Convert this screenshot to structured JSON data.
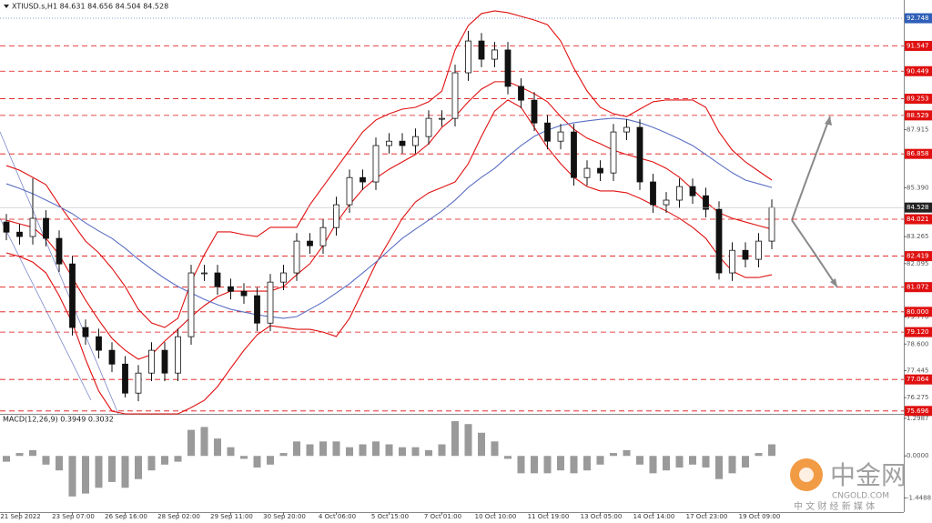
{
  "chart_data": [
    {
      "type": "candlestick",
      "title": "XTIUSD.s,H1  84.631 84.656 84.504 84.528",
      "categories": [
        null,
        "21 Sep 2022",
        null,
        null,
        null,
        "23 Sep 07:00",
        null,
        null,
        null,
        "26 Sep 16:00",
        null,
        null,
        null,
        "28 Sep 02:00",
        null,
        null,
        null,
        "29 Sep 11:00",
        null,
        null,
        null,
        "30 Sep 20:00",
        null,
        null,
        null,
        "4 Oct 06:00",
        null,
        null,
        null,
        "5 Oct 15:00",
        null,
        null,
        null,
        "7 Oct 01:00",
        null,
        null,
        null,
        "10 Oct 10:00",
        null,
        null,
        null,
        "11 Oct 19:00",
        null,
        null,
        null,
        "13 Oct 05:00",
        null,
        null,
        null,
        "14 Oct 14:00",
        null,
        null,
        null,
        "17 Oct 23:00",
        null,
        null,
        null,
        "19 Oct 09:00",
        null
      ],
      "open": [
        83.9,
        83.46,
        83.27,
        84.06,
        83.19,
        82.08,
        79.32,
        78.92,
        78.33,
        77.73,
        76.47,
        77.34,
        78.33,
        77.34,
        78.92,
        81.69,
        81.69,
        81.09,
        80.89,
        80.7,
        79.51,
        81.29,
        81.69,
        83.07,
        82.87,
        83.66,
        84.65,
        85.83,
        85.64,
        87.22,
        87.41,
        87.22,
        87.61,
        88.4,
        88.4,
        90.38,
        91.76,
        90.97,
        91.37,
        89.79,
        89.19,
        88.2,
        87.41,
        87.81,
        85.83,
        86.23,
        86.03,
        87.81,
        88.01,
        85.64,
        84.65,
        84.85,
        85.44,
        85.04,
        84.45,
        81.69,
        82.67,
        82.28,
        83.07
      ],
      "high": [
        84.25,
        83.81,
        85.8,
        84.41,
        83.54,
        82.43,
        79.67,
        79.27,
        78.68,
        78.08,
        77.69,
        78.68,
        78.68,
        79.27,
        82.04,
        82.04,
        82.04,
        81.44,
        81.24,
        81.05,
        81.64,
        82.04,
        83.42,
        83.42,
        84.01,
        85.0,
        86.18,
        86.18,
        87.57,
        87.76,
        87.76,
        87.96,
        88.75,
        88.75,
        90.73,
        92.2,
        92.11,
        91.72,
        91.72,
        90.14,
        89.54,
        88.55,
        88.16,
        88.16,
        86.58,
        86.58,
        88.16,
        88.36,
        88.36,
        85.99,
        85.2,
        85.79,
        85.79,
        85.39,
        84.8,
        83.02,
        83.02,
        83.42,
        84.88
      ],
      "low": [
        83.11,
        82.92,
        82.92,
        82.84,
        81.73,
        78.97,
        78.57,
        77.98,
        77.38,
        76.28,
        76.12,
        76.99,
        76.99,
        76.99,
        78.57,
        81.34,
        80.74,
        80.54,
        80.35,
        79.16,
        79.16,
        80.94,
        81.34,
        82.52,
        82.52,
        83.31,
        84.3,
        85.29,
        85.29,
        86.87,
        86.87,
        86.87,
        87.26,
        88.05,
        88.05,
        90.03,
        90.62,
        90.62,
        89.44,
        88.84,
        87.85,
        87.06,
        87.06,
        85.48,
        85.48,
        85.68,
        85.68,
        87.46,
        85.29,
        84.3,
        84.3,
        84.5,
        84.69,
        84.1,
        81.4,
        81.34,
        81.93,
        81.93,
        82.72
      ],
      "close": [
        83.46,
        83.27,
        84.06,
        83.19,
        82.08,
        79.32,
        78.92,
        78.33,
        77.73,
        76.47,
        77.34,
        78.33,
        77.34,
        78.92,
        81.69,
        81.69,
        81.09,
        80.89,
        80.7,
        79.51,
        81.29,
        81.69,
        83.07,
        82.87,
        83.66,
        84.65,
        85.83,
        85.64,
        87.22,
        87.41,
        87.22,
        87.61,
        88.4,
        88.4,
        90.38,
        91.76,
        90.97,
        91.37,
        89.79,
        89.19,
        88.2,
        87.41,
        87.81,
        85.83,
        86.23,
        86.03,
        87.81,
        88.01,
        85.64,
        84.65,
        84.85,
        85.44,
        85.04,
        84.45,
        81.69,
        82.67,
        82.28,
        83.07,
        84.528
      ],
      "overlays": [
        {
          "color": "#e01010",
          "values": [
            86.35,
            86.15,
            85.84,
            85.52,
            84.65,
            83.86,
            83.07,
            82.56,
            81.89,
            81.1,
            80.11,
            79.52,
            79.32,
            79.72,
            81.3,
            82.48,
            83.47,
            83.47,
            83.35,
            83.27,
            83.67,
            83.67,
            83.67,
            84.65,
            85.44,
            86.23,
            87.02,
            87.81,
            88.33,
            88.6,
            88.8,
            88.88,
            89.12,
            89.59,
            91.37,
            92.43,
            92.95,
            93.07,
            92.99,
            92.83,
            92.67,
            92.47,
            91.76,
            90.58,
            89.59,
            88.88,
            88.6,
            88.48,
            88.8,
            89.12,
            89.2,
            89.2,
            89.2,
            88.88,
            87.81,
            87.02,
            86.51,
            86.11,
            85.72
          ]
        },
        {
          "color": "#e01010",
          "values": [
            83.98,
            83.82,
            83.67,
            83.19,
            82.48,
            81.49,
            80.51,
            79.64,
            78.85,
            78.33,
            77.94,
            78.14,
            78.73,
            79.24,
            79.79,
            80.27,
            80.66,
            80.9,
            80.9,
            80.9,
            80.9,
            81.1,
            81.61,
            82.09,
            82.88,
            83.86,
            84.65,
            85.32,
            85.8,
            86.19,
            86.51,
            86.83,
            87.3,
            88.01,
            88.48,
            89.12,
            89.67,
            89.99,
            89.99,
            89.75,
            89.47,
            89.12,
            88.48,
            87.93,
            87.54,
            87.3,
            87.02,
            86.83,
            86.67,
            86.51,
            86.23,
            85.84,
            85.32,
            84.77,
            84.3,
            84.06,
            83.9,
            83.74,
            83.59
          ]
        },
        {
          "color": "#e01010",
          "values": [
            82.56,
            82.4,
            82.16,
            81.69,
            80.7,
            79.52,
            77.94,
            76.56,
            75.69,
            75.57,
            75.57,
            75.57,
            75.57,
            75.57,
            75.84,
            76.16,
            76.75,
            77.55,
            78.33,
            79.0,
            79.4,
            79.32,
            79.24,
            79.24,
            79.12,
            78.93,
            79.72,
            80.9,
            82.09,
            83.07,
            84.06,
            84.77,
            85.17,
            85.4,
            85.64,
            86.43,
            87.62,
            88.72,
            89.2,
            88.88,
            88.01,
            87.14,
            86.43,
            85.84,
            85.44,
            85.25,
            85.25,
            85.17,
            84.93,
            84.65,
            84.38,
            84.06,
            83.67,
            83.19,
            82.4,
            81.77,
            81.49,
            81.49,
            81.61
          ]
        },
        {
          "color": "#5b6fc4",
          "values": [
            85.56,
            85.36,
            85.13,
            84.85,
            84.57,
            84.26,
            83.86,
            83.51,
            83.19,
            82.76,
            82.28,
            81.85,
            81.45,
            81.1,
            80.82,
            80.54,
            80.31,
            80.11,
            79.99,
            79.87,
            79.79,
            79.72,
            79.79,
            80.11,
            80.43,
            80.82,
            81.22,
            81.69,
            82.16,
            82.68,
            83.19,
            83.59,
            83.98,
            84.38,
            84.85,
            85.4,
            85.84,
            86.23,
            86.75,
            87.22,
            87.62,
            87.89,
            88.09,
            88.21,
            88.29,
            88.36,
            88.41,
            88.36,
            88.21,
            88.01,
            87.77,
            87.5,
            87.22,
            86.83,
            86.43,
            86.04,
            85.72,
            85.56,
            85.4
          ]
        }
      ],
      "levels": {
        "color": "#e01010",
        "values": [
          91.547,
          90.449,
          89.253,
          88.529,
          86.858,
          84.021,
          82.419,
          81.072,
          {
            "value": 80,
            "label": "80.000"
          },
          {
            "value": 79.12,
            "label": "79.120"
          },
          77.064,
          75.696
        ]
      },
      "high_line": 92.748,
      "ylim": [
        75.57,
        93.54
      ],
      "yticks": [
        87.915,
        {
          "value": 85.39,
          "label": "85.390"
        },
        83.265,
        82.095,
        {
          "value": 79.77,
          "label": "79.770"
        },
        {
          "value": 78.6,
          "label": "78.600"
        },
        77.445,
        76.275
      ]
    },
    {
      "type": "bar",
      "title": "MACD(12,26,9) 0.3949 0.3032",
      "color": "#9a9a9a",
      "values": [
        -0.2,
        0.1,
        0.2,
        -0.3,
        -0.5,
        -1.4,
        -1.3,
        -1.1,
        -0.9,
        -1.1,
        -0.8,
        -0.5,
        -0.3,
        -0.2,
        0.9,
        1.0,
        0.6,
        0.3,
        -0.1,
        -0.4,
        -0.3,
        0.1,
        0.5,
        0.4,
        0.5,
        0.5,
        0.3,
        0.4,
        0.5,
        0.4,
        0.3,
        0.3,
        0.2,
        0.4,
        1.2,
        1.1,
        0.8,
        0.5,
        -0.1,
        -0.6,
        -0.6,
        -0.6,
        -0.5,
        -0.6,
        -0.5,
        -0.3,
        0.1,
        0.2,
        -0.3,
        -0.6,
        -0.5,
        -0.4,
        -0.3,
        -0.4,
        -0.8,
        -0.6,
        -0.4,
        0.1,
        0.4
      ],
      "ylim": [
        -1.94,
        1.39
      ],
      "yticks": [
        1.2987,
        {
          "value": 0,
          "label": "0.0000"
        },
        -1.4488
      ]
    }
  ],
  "watermark": {
    "brand": "中金网",
    "domain": "CNGOLD.COM",
    "slogan": "中 文 财 经 新 媒 体"
  }
}
